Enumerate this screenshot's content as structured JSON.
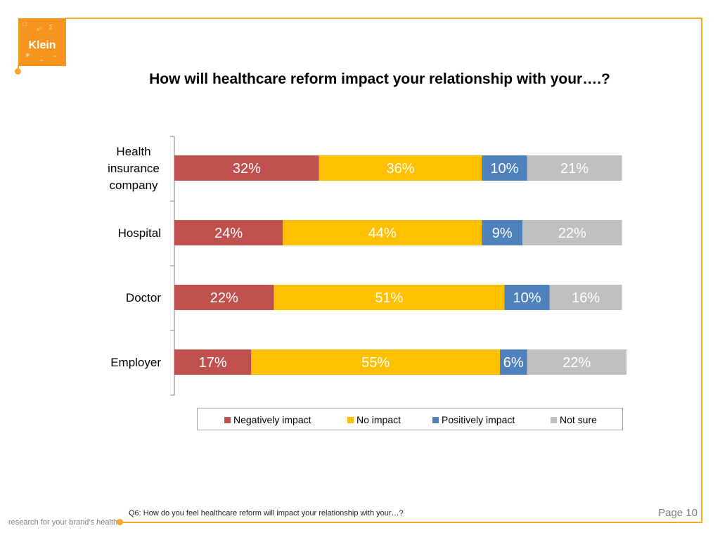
{
  "brand": {
    "logo_text": "Klein",
    "tagline": "research for your brand’s health",
    "accent_color": "#f7a823",
    "logo_color": "#f7941d"
  },
  "slide": {
    "footnote": "Q6:  How do you feel healthcare reform will impact your relationship with your…?",
    "page_number": "Page 10"
  },
  "chart_data": {
    "type": "bar",
    "orientation": "horizontal",
    "stacked": true,
    "title": "How will healthcare reform impact your relationship with your….?",
    "categories": [
      "Health insurance company",
      "Hospital",
      "Doctor",
      "Employer"
    ],
    "category_lines": [
      [
        "Health",
        "insurance",
        "company"
      ],
      [
        "Hospital"
      ],
      [
        "Doctor"
      ],
      [
        "Employer"
      ]
    ],
    "series": [
      {
        "name": "Negatively impact",
        "color": "#c0504d",
        "values": [
          32,
          24,
          22,
          17
        ],
        "labels": [
          "32%",
          "24%",
          "22%",
          "17%"
        ]
      },
      {
        "name": "No impact",
        "color": "#ffc000",
        "values": [
          36,
          44,
          51,
          55
        ],
        "labels": [
          "36%",
          "44%",
          "51%",
          "55%"
        ]
      },
      {
        "name": "Positively impact",
        "color": "#4f81bd",
        "values": [
          10,
          9,
          10,
          6
        ],
        "labels": [
          "10%",
          "9%",
          "10%",
          "6%"
        ]
      },
      {
        "name": "Not sure",
        "color": "#bfbfbf",
        "values": [
          21,
          22,
          16,
          22
        ],
        "labels": [
          "21%",
          "22%",
          "16%",
          "22%"
        ]
      }
    ],
    "xlim": [
      0,
      100
    ],
    "grid": false,
    "legend_position": "bottom"
  }
}
